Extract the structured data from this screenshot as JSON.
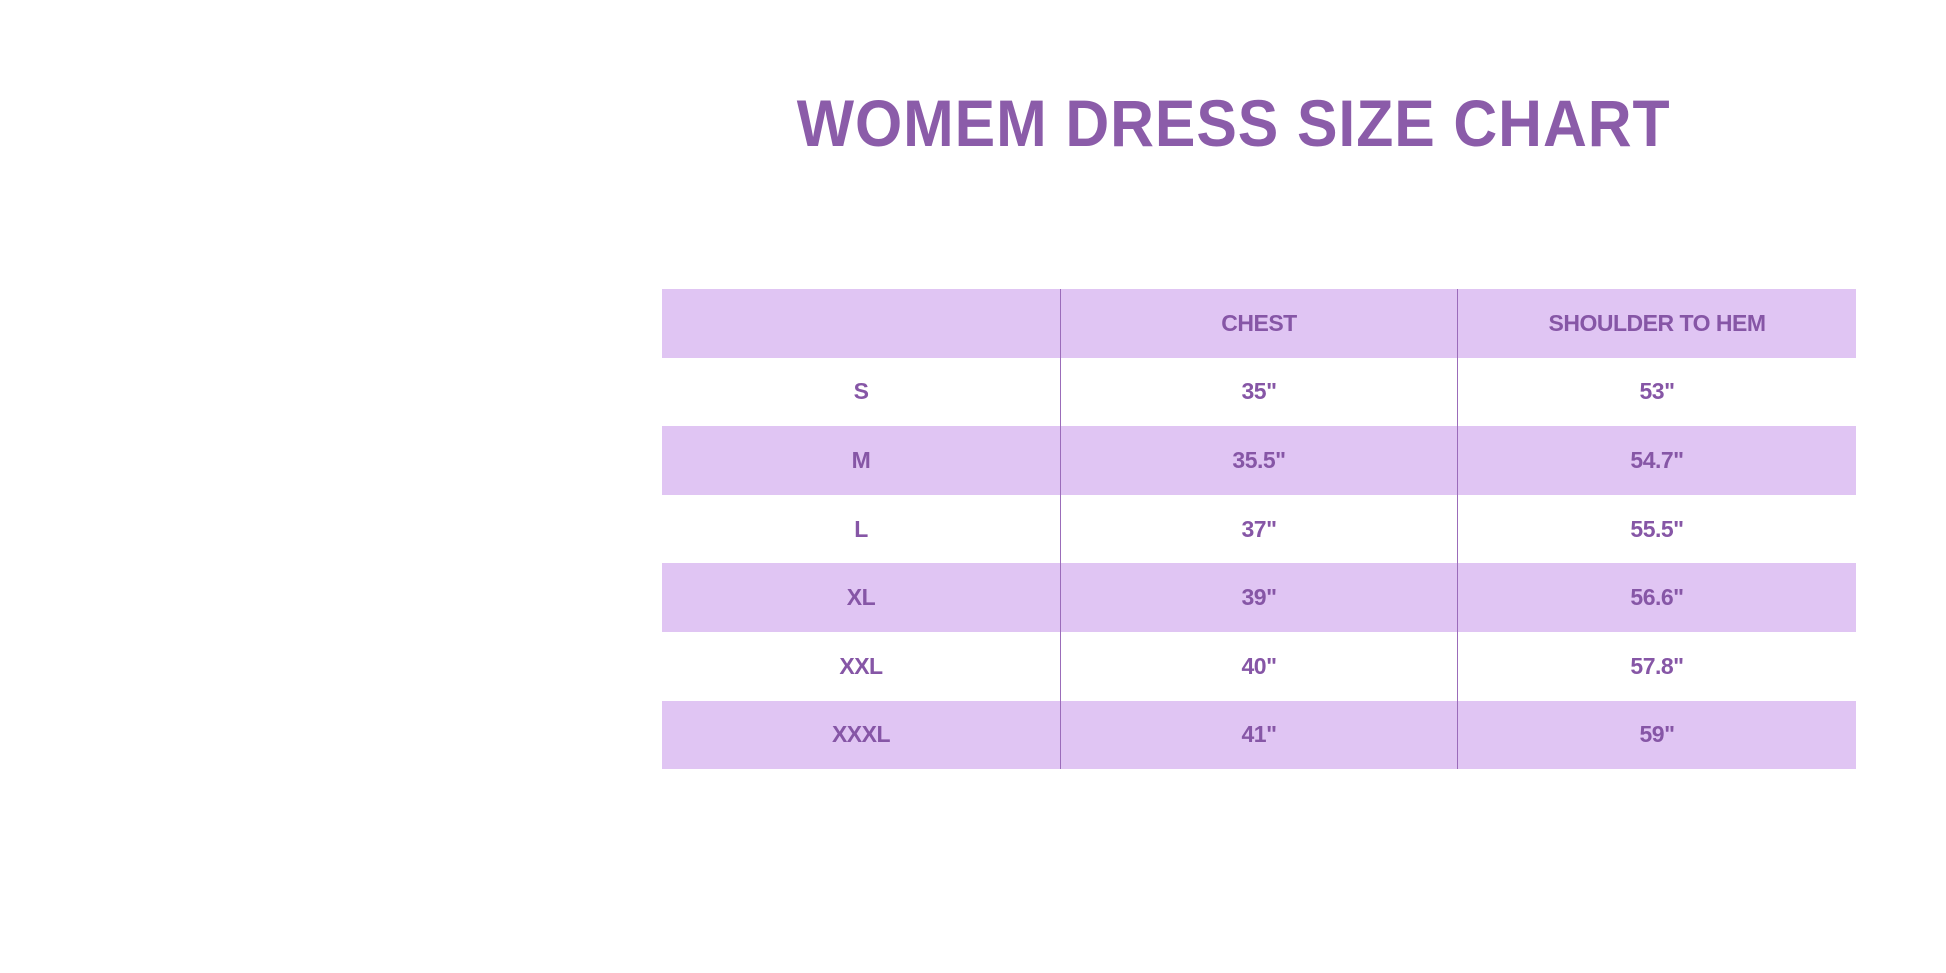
{
  "title": "WOMEM DRESS SIZE CHART",
  "colors": {
    "text": "#8656a6",
    "shaded_row": "#e0c5f3",
    "background": "#ffffff"
  },
  "table": {
    "headers": [
      "",
      "CHEST",
      "SHOULDER TO HEM"
    ],
    "rows": [
      [
        "S",
        "35\"",
        "53\""
      ],
      [
        "M",
        "35.5\"",
        "54.7\""
      ],
      [
        "L",
        "37\"",
        "55.5\""
      ],
      [
        "XL",
        "39\"",
        "56.6\""
      ],
      [
        "XXL",
        "40\"",
        "57.8\""
      ],
      [
        "XXXL",
        "41\"",
        "59\""
      ]
    ]
  }
}
